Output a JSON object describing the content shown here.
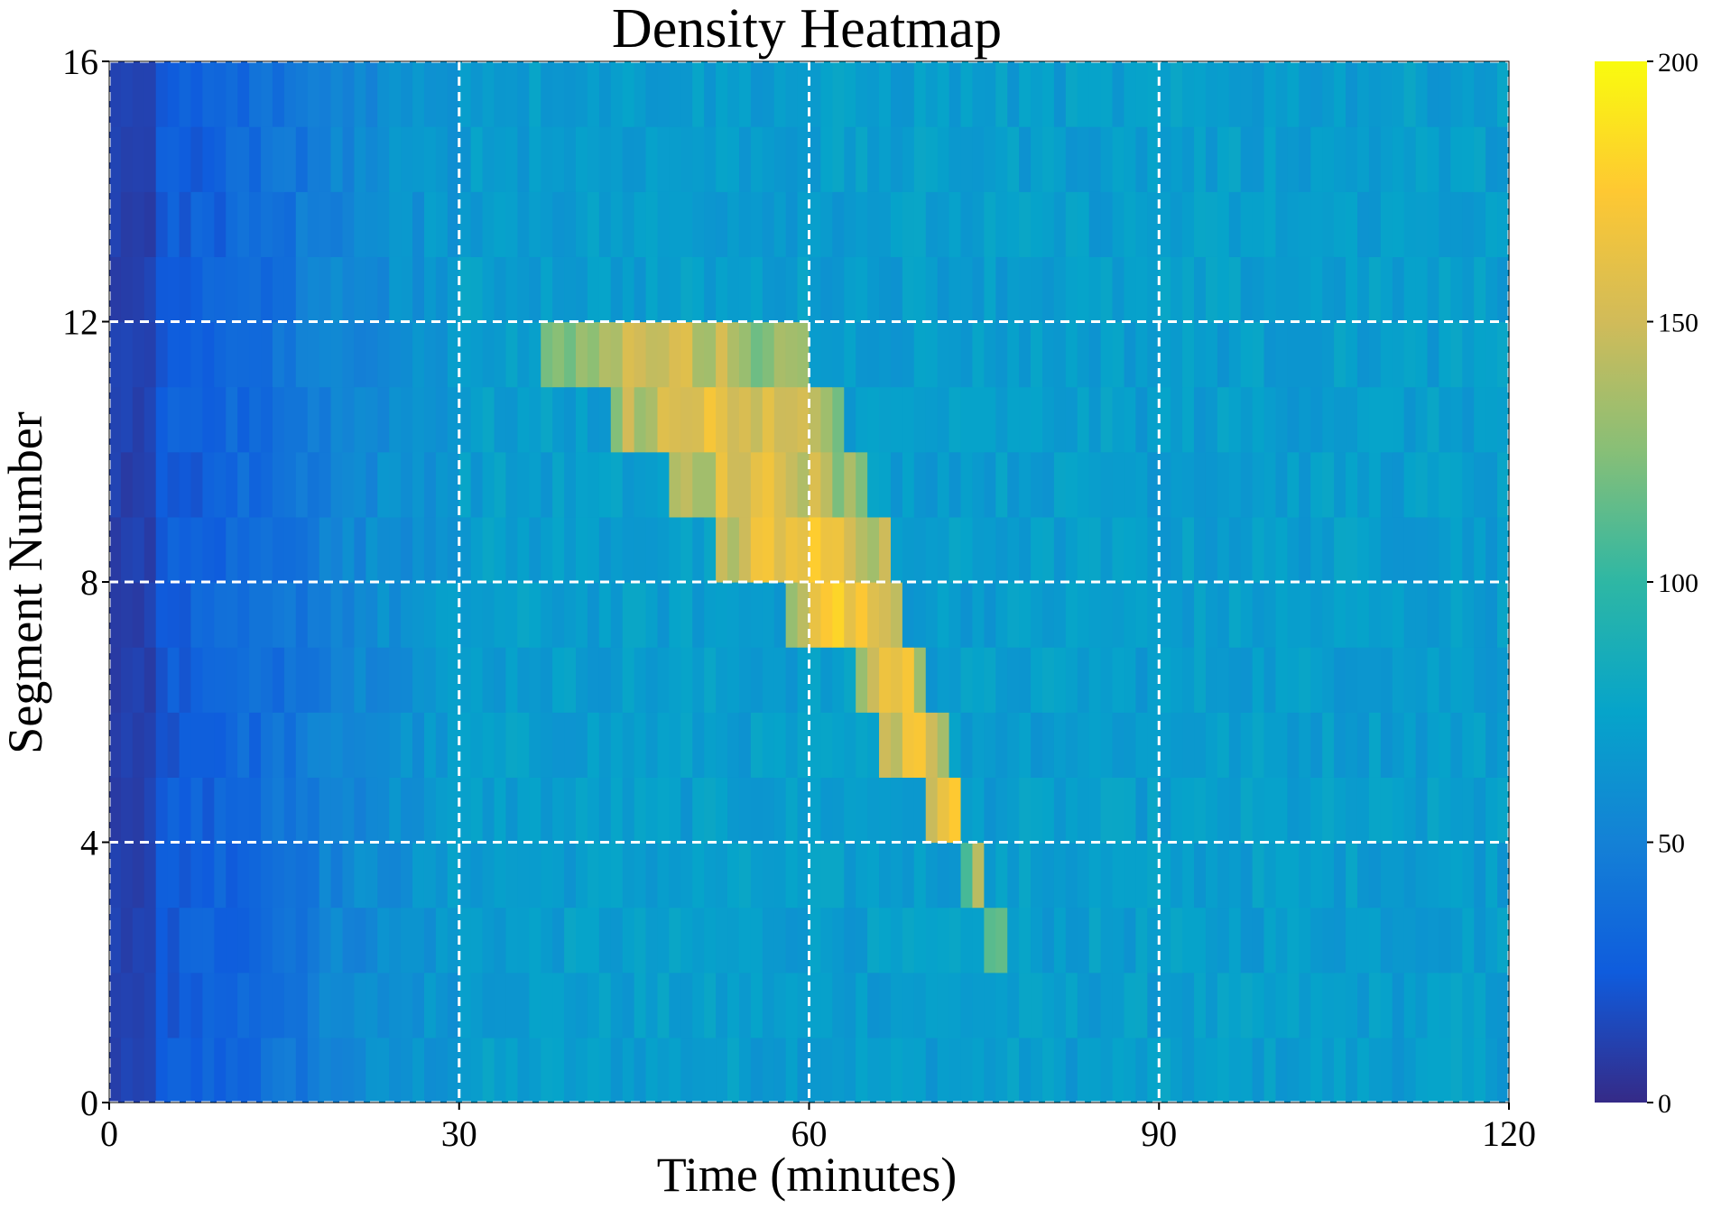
{
  "chart_data": {
    "type": "heatmap",
    "title": "Density Heatmap",
    "xlabel": "Time (minutes)",
    "ylabel": "Segment Number",
    "xlim": [
      0,
      120
    ],
    "ylim": [
      0,
      16
    ],
    "x_ticks": [
      0,
      30,
      60,
      90,
      120
    ],
    "y_ticks": [
      0,
      4,
      8,
      12,
      16
    ],
    "grid": true,
    "grid_style": "dashed white",
    "colorbar": {
      "range": [
        0,
        200
      ],
      "ticks": [
        0,
        50,
        100,
        150,
        200
      ],
      "colors": [
        "#352a87",
        "#0f5cdd",
        "#1481d6",
        "#06a4ca",
        "#2eb7a4",
        "#87bf77",
        "#d1bb59",
        "#fec832",
        "#f9fb0e"
      ],
      "position": "right"
    },
    "segments": 16,
    "time_bin_minutes": 1,
    "base_level": 70,
    "base_noise": 8,
    "startup_ramp": [
      {
        "t": 0,
        "value": 10
      },
      {
        "t": 5,
        "value": 25
      },
      {
        "t": 12,
        "value": 35
      },
      {
        "t": 20,
        "value": 55
      },
      {
        "t": 30,
        "value": 68
      }
    ],
    "congestion_wave": [
      {
        "segment": 11,
        "t_start": 37,
        "t_end": 60,
        "peak": 150
      },
      {
        "segment": 10,
        "t_start": 43,
        "t_end": 63,
        "peak": 165
      },
      {
        "segment": 9,
        "t_start": 48,
        "t_end": 65,
        "peak": 160
      },
      {
        "segment": 8,
        "t_start": 52,
        "t_end": 67,
        "peak": 168
      },
      {
        "segment": 7,
        "t_start": 58,
        "t_end": 68,
        "peak": 175
      },
      {
        "segment": 6,
        "t_start": 64,
        "t_end": 70,
        "peak": 172
      },
      {
        "segment": 5,
        "t_start": 66,
        "t_end": 72,
        "peak": 172
      },
      {
        "segment": 4,
        "t_start": 70,
        "t_end": 73,
        "peak": 178
      },
      {
        "segment": 3,
        "t_start": 73,
        "t_end": 75,
        "peak": 135
      },
      {
        "segment": 2,
        "t_start": 75,
        "t_end": 77,
        "peak": 110
      }
    ]
  }
}
